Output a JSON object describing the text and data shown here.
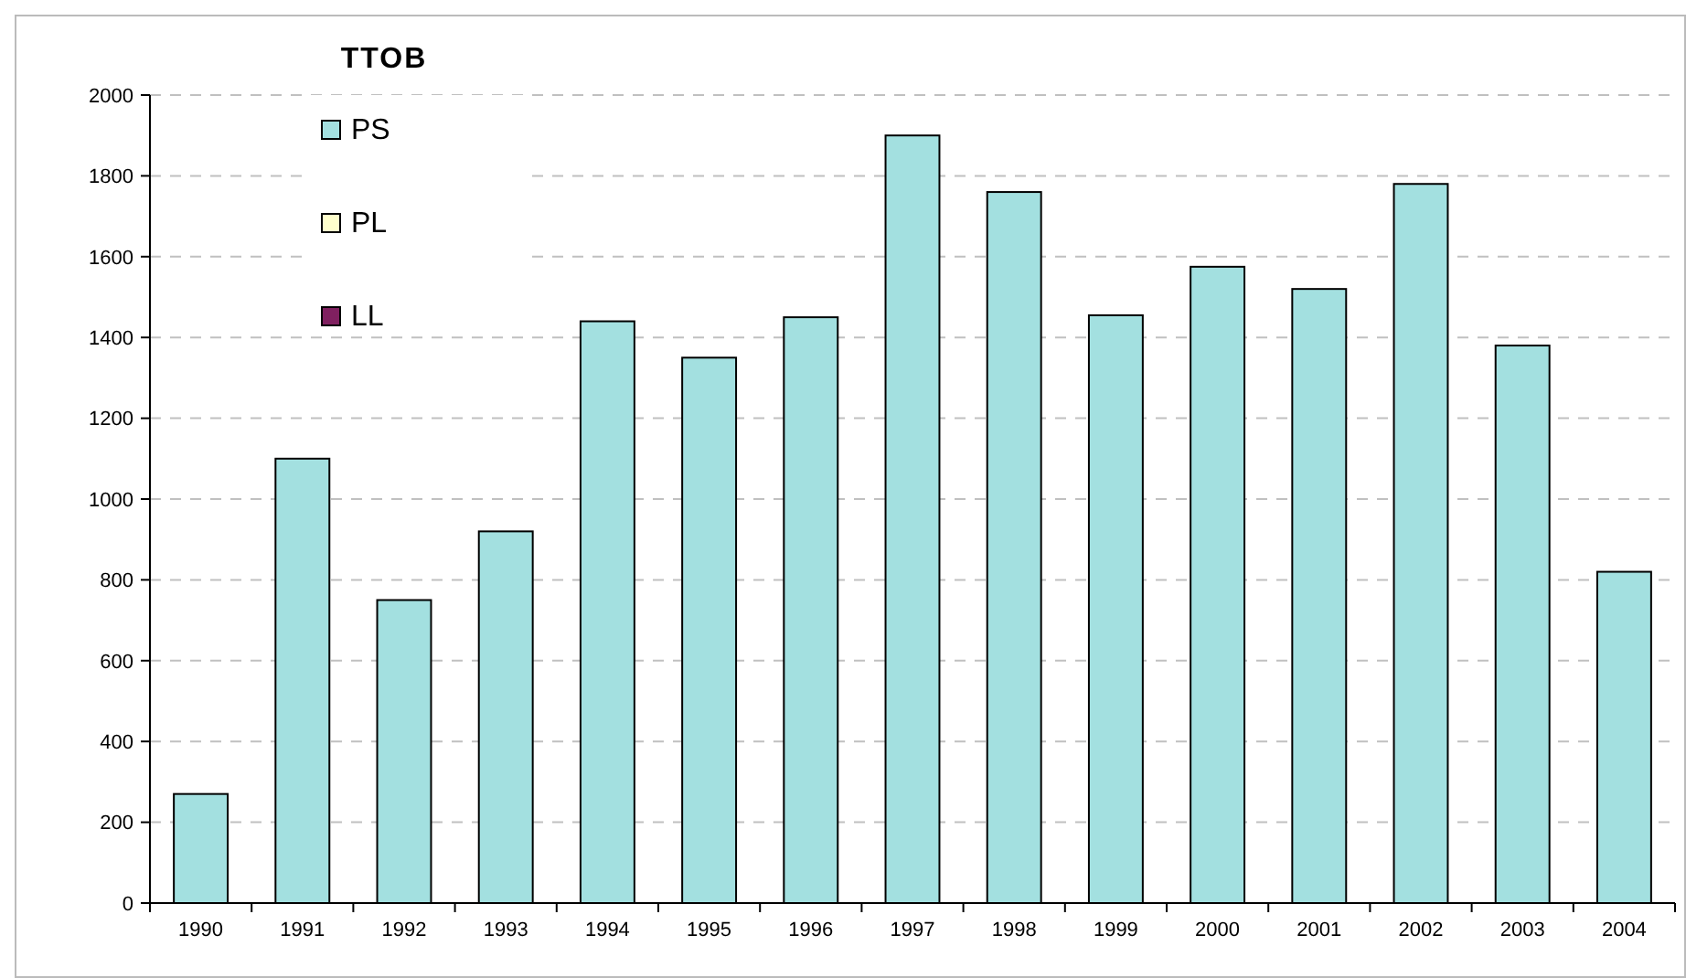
{
  "chart_data": {
    "type": "bar",
    "title": "TTOB",
    "categories": [
      "1990",
      "1991",
      "1992",
      "1993",
      "1994",
      "1995",
      "1996",
      "1997",
      "1998",
      "1999",
      "2000",
      "2001",
      "2002",
      "2003",
      "2004"
    ],
    "series": [
      {
        "name": "PS",
        "color": "#a3e0e0",
        "values": [
          270,
          1100,
          750,
          920,
          1440,
          1350,
          1450,
          1900,
          1760,
          1455,
          1575,
          1520,
          1780,
          1380,
          820
        ]
      },
      {
        "name": "PL",
        "color": "#ffffcc",
        "values": [
          null,
          null,
          null,
          null,
          null,
          null,
          null,
          null,
          null,
          null,
          null,
          null,
          null,
          null,
          null
        ]
      },
      {
        "name": "LL",
        "color": "#802060",
        "values": [
          null,
          null,
          null,
          null,
          null,
          null,
          null,
          null,
          null,
          null,
          null,
          null,
          null,
          null,
          null
        ]
      }
    ],
    "ylim": [
      0,
      2000
    ],
    "yticks": [
      0,
      200,
      400,
      600,
      800,
      1000,
      1200,
      1400,
      1600,
      1800,
      2000
    ],
    "grid": "y",
    "legend": "top left"
  }
}
